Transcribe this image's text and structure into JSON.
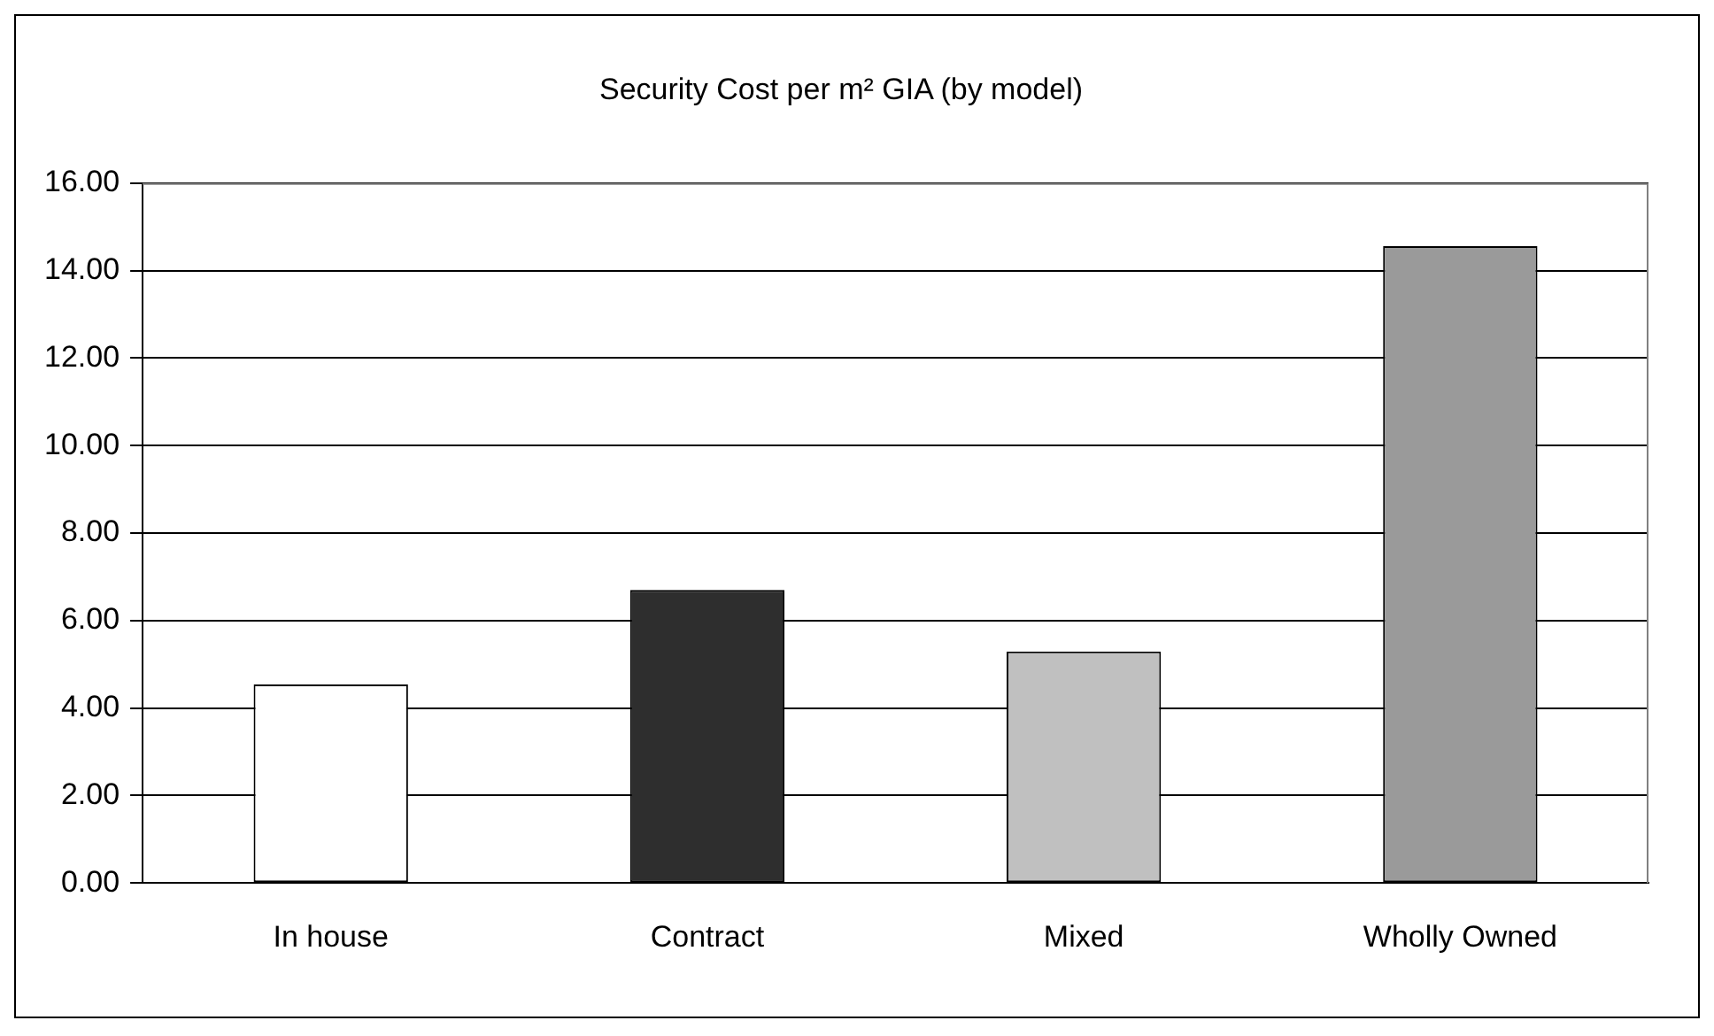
{
  "chart_data": {
    "type": "bar",
    "title": "Security Cost per m² GIA (by model)",
    "categories": [
      "In house",
      "Contract",
      "Mixed",
      "Wholly Owned"
    ],
    "values": [
      4.54,
      6.7,
      5.29,
      14.56
    ],
    "colors": [
      "#ffffff",
      "#2e2e2e",
      "#c0c0c0",
      "#9a9a9a"
    ],
    "ylim": [
      0,
      16
    ],
    "yticks": [
      {
        "value": 0,
        "label": "0.00"
      },
      {
        "value": 2,
        "label": "2.00"
      },
      {
        "value": 4,
        "label": "4.00"
      },
      {
        "value": 6,
        "label": "6.00"
      },
      {
        "value": 8,
        "label": "8.00"
      },
      {
        "value": 10,
        "label": "10.00"
      },
      {
        "value": 12,
        "label": "12.00"
      },
      {
        "value": 14,
        "label": "14.00"
      },
      {
        "value": 16,
        "label": "16.00"
      }
    ],
    "grid": "y"
  }
}
